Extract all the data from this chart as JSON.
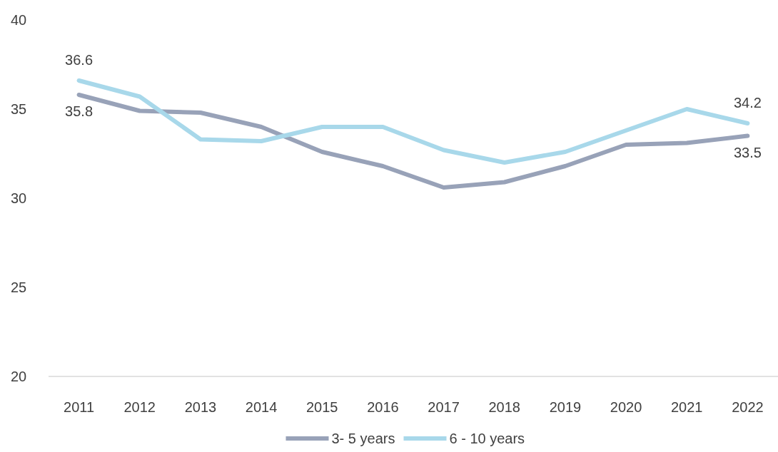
{
  "chart_data": {
    "type": "line",
    "categories": [
      "2011",
      "2012",
      "2013",
      "2014",
      "2015",
      "2016",
      "2017",
      "2018",
      "2019",
      "2020",
      "2021",
      "2022"
    ],
    "series": [
      {
        "name": "3- 5 years",
        "color": "#98a2b8",
        "values": [
          35.8,
          34.9,
          34.8,
          34.0,
          32.6,
          31.8,
          30.6,
          30.9,
          31.8,
          33.0,
          33.1,
          33.5
        ],
        "value_labels": [
          "35.8",
          null,
          null,
          null,
          null,
          null,
          null,
          null,
          null,
          null,
          null,
          "33.5"
        ]
      },
      {
        "name": "6 - 10 years",
        "color": "#a8d8ea",
        "values": [
          36.6,
          35.7,
          33.3,
          33.2,
          34.0,
          34.0,
          32.7,
          32.0,
          32.6,
          33.8,
          35.0,
          34.2
        ],
        "value_labels": [
          "36.6",
          null,
          null,
          null,
          null,
          null,
          null,
          null,
          null,
          null,
          null,
          "34.2"
        ]
      }
    ],
    "ylim": [
      20,
      40
    ],
    "yticks": [
      20,
      25,
      30,
      35,
      40
    ],
    "grid": false,
    "legend": "bottom",
    "marker": "none",
    "line_style": "solid"
  }
}
